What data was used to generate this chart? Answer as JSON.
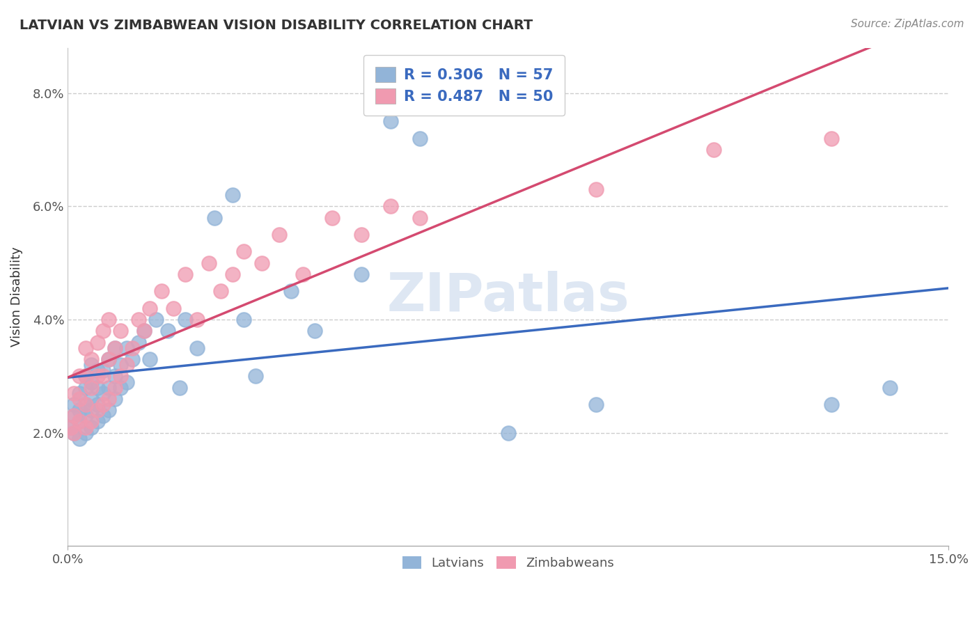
{
  "title": "LATVIAN VS ZIMBABWEAN VISION DISABILITY CORRELATION CHART",
  "source": "Source: ZipAtlas.com",
  "ylabel": "Vision Disability",
  "latvian_R": 0.306,
  "latvian_N": 57,
  "zimbabwean_R": 0.487,
  "zimbabwean_N": 50,
  "latvian_color": "#92b4d8",
  "zimbabwean_color": "#f09ab0",
  "latvian_line_color": "#3a6abf",
  "zimbabwean_line_color": "#d44a70",
  "watermark": "ZIPatlas",
  "x_min": 0.0,
  "x_max": 0.15,
  "y_min": 0.0,
  "y_max": 0.088,
  "yticks": [
    0.02,
    0.04,
    0.06,
    0.08
  ],
  "ytick_labels": [
    "2.0%",
    "4.0%",
    "6.0%",
    "8.0%"
  ],
  "latvian_scatter_x": [
    0.0005,
    0.001,
    0.001,
    0.001,
    0.002,
    0.002,
    0.002,
    0.002,
    0.003,
    0.003,
    0.003,
    0.003,
    0.003,
    0.004,
    0.004,
    0.004,
    0.004,
    0.004,
    0.005,
    0.005,
    0.005,
    0.005,
    0.006,
    0.006,
    0.006,
    0.007,
    0.007,
    0.007,
    0.008,
    0.008,
    0.008,
    0.009,
    0.009,
    0.01,
    0.01,
    0.011,
    0.012,
    0.013,
    0.014,
    0.015,
    0.017,
    0.019,
    0.02,
    0.022,
    0.025,
    0.028,
    0.03,
    0.032,
    0.038,
    0.042,
    0.05,
    0.055,
    0.06,
    0.075,
    0.09,
    0.13,
    0.14
  ],
  "latvian_scatter_y": [
    0.021,
    0.02,
    0.023,
    0.025,
    0.019,
    0.022,
    0.024,
    0.027,
    0.02,
    0.023,
    0.025,
    0.028,
    0.03,
    0.021,
    0.024,
    0.026,
    0.029,
    0.032,
    0.022,
    0.025,
    0.028,
    0.031,
    0.023,
    0.027,
    0.031,
    0.024,
    0.028,
    0.033,
    0.026,
    0.03,
    0.035,
    0.028,
    0.032,
    0.029,
    0.035,
    0.033,
    0.036,
    0.038,
    0.033,
    0.04,
    0.038,
    0.028,
    0.04,
    0.035,
    0.058,
    0.062,
    0.04,
    0.03,
    0.045,
    0.038,
    0.048,
    0.075,
    0.072,
    0.02,
    0.025,
    0.025,
    0.028
  ],
  "zimbabwean_scatter_x": [
    0.0005,
    0.001,
    0.001,
    0.001,
    0.002,
    0.002,
    0.002,
    0.003,
    0.003,
    0.003,
    0.003,
    0.004,
    0.004,
    0.004,
    0.005,
    0.005,
    0.005,
    0.006,
    0.006,
    0.006,
    0.007,
    0.007,
    0.007,
    0.008,
    0.008,
    0.009,
    0.009,
    0.01,
    0.011,
    0.012,
    0.013,
    0.014,
    0.016,
    0.018,
    0.02,
    0.022,
    0.024,
    0.026,
    0.028,
    0.03,
    0.033,
    0.036,
    0.04,
    0.045,
    0.05,
    0.055,
    0.06,
    0.09,
    0.11,
    0.13
  ],
  "zimbabwean_scatter_y": [
    0.021,
    0.02,
    0.023,
    0.027,
    0.022,
    0.026,
    0.03,
    0.021,
    0.025,
    0.03,
    0.035,
    0.022,
    0.028,
    0.033,
    0.024,
    0.03,
    0.036,
    0.025,
    0.03,
    0.038,
    0.026,
    0.033,
    0.04,
    0.028,
    0.035,
    0.03,
    0.038,
    0.032,
    0.035,
    0.04,
    0.038,
    0.042,
    0.045,
    0.042,
    0.048,
    0.04,
    0.05,
    0.045,
    0.048,
    0.052,
    0.05,
    0.055,
    0.048,
    0.058,
    0.055,
    0.06,
    0.058,
    0.063,
    0.07,
    0.072
  ]
}
